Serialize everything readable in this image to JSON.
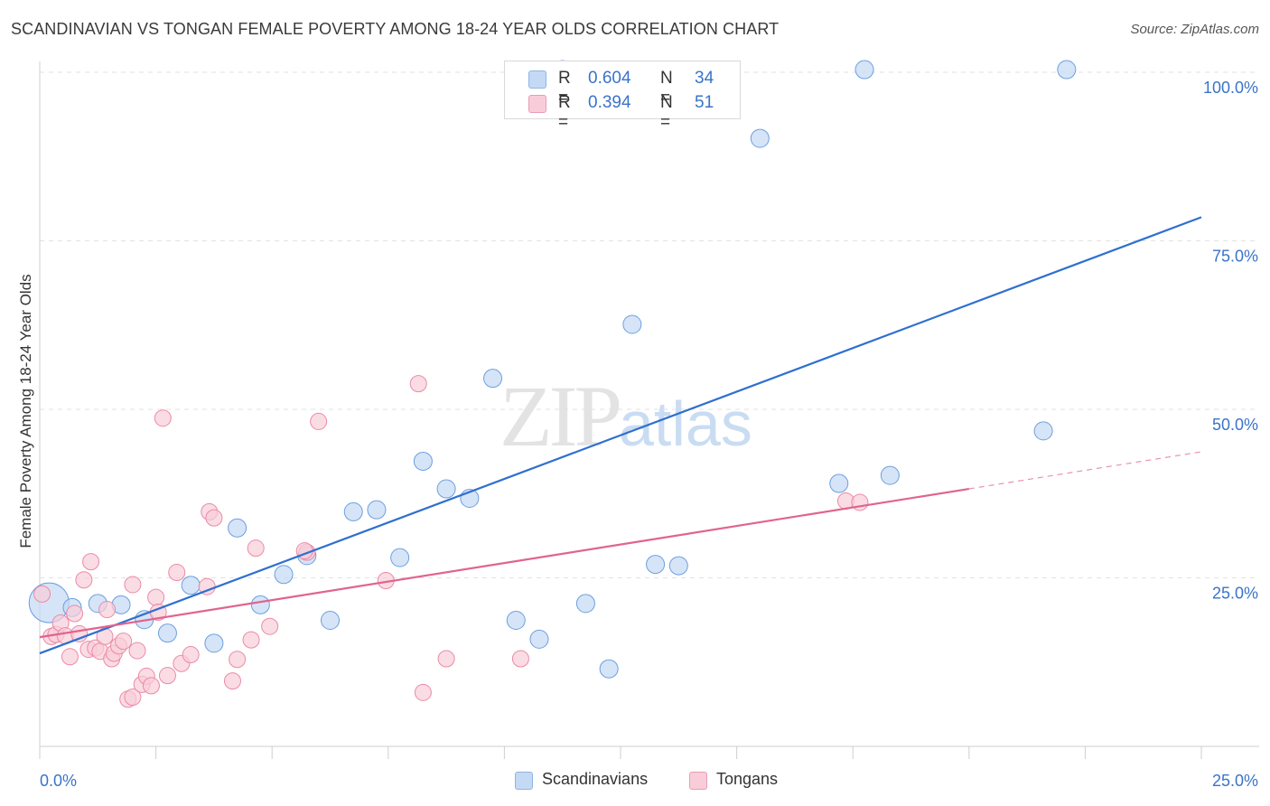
{
  "header": {
    "title": "SCANDINAVIAN VS TONGAN FEMALE POVERTY AMONG 18-24 YEAR OLDS CORRELATION CHART",
    "source": "Source: ZipAtlas.com"
  },
  "watermark": {
    "zip": "ZIP",
    "atlas": "atlas"
  },
  "legend": {
    "rows": [
      {
        "r_label": "R =",
        "r_value": "0.604",
        "n_label": "N =",
        "n_value": "34",
        "color": "#a9c8f0"
      },
      {
        "r_label": "R =",
        "r_value": "0.394",
        "n_label": "N =",
        "n_value": "51",
        "color": "#f5b6c9"
      }
    ]
  },
  "bottom_legend": {
    "items": [
      {
        "label": "Scandinavians",
        "color": "#a9c8f0"
      },
      {
        "label": "Tongans",
        "color": "#f5b6c9"
      }
    ]
  },
  "chart_data": {
    "type": "scatter",
    "title": "SCANDINAVIAN VS TONGAN FEMALE POVERTY AMONG 18-24 YEAR OLDS CORRELATION CHART",
    "xlabel": "",
    "ylabel": "Female Poverty Among 18-24 Year Olds",
    "xlim": [
      0,
      25
    ],
    "ylim": [
      0,
      100
    ],
    "x_tick_labels": [
      {
        "value": 0,
        "label": "0.0%"
      },
      {
        "value": 25,
        "label": "25.0%"
      }
    ],
    "y_tick_labels": [
      {
        "value": 25,
        "label": "25.0%"
      },
      {
        "value": 50,
        "label": "50.0%"
      },
      {
        "value": 75,
        "label": "75.0%"
      },
      {
        "value": 100,
        "label": "100.0%"
      }
    ],
    "series": [
      {
        "name": "Scandinavians",
        "color": "#6b9fe0",
        "fill": "#c4d9f4",
        "trend": {
          "x0": 0,
          "y0": 13.8,
          "x1": 25,
          "y1": 78.5,
          "color": "#2f6fcf"
        },
        "points": [
          [
            0.2,
            21.3
          ],
          [
            0.7,
            20.6
          ],
          [
            1.25,
            21.2
          ],
          [
            1.75,
            21.0
          ],
          [
            2.25,
            18.8
          ],
          [
            2.75,
            16.8
          ],
          [
            3.25,
            23.9
          ],
          [
            3.75,
            15.3
          ],
          [
            4.25,
            32.4
          ],
          [
            4.75,
            21.0
          ],
          [
            5.25,
            25.5
          ],
          [
            5.75,
            28.3
          ],
          [
            6.25,
            18.7
          ],
          [
            6.75,
            34.8
          ],
          [
            7.25,
            35.1
          ],
          [
            7.75,
            28.0
          ],
          [
            8.25,
            42.3
          ],
          [
            8.75,
            38.2
          ],
          [
            9.25,
            36.8
          ],
          [
            9.75,
            54.6
          ],
          [
            10.25,
            18.7
          ],
          [
            10.75,
            15.9
          ],
          [
            11.25,
            100.4
          ],
          [
            11.75,
            21.2
          ],
          [
            12.25,
            11.5
          ],
          [
            12.75,
            62.6
          ],
          [
            13.25,
            27.0
          ],
          [
            13.75,
            26.8
          ],
          [
            15.5,
            90.2
          ],
          [
            17.2,
            39.0
          ],
          [
            17.75,
            100.4
          ],
          [
            18.3,
            40.2
          ],
          [
            21.6,
            46.8
          ],
          [
            22.1,
            100.4
          ]
        ],
        "sizes": [
          22,
          10,
          10,
          10,
          10,
          10,
          10,
          10,
          10,
          10,
          10,
          10,
          10,
          10,
          10,
          10,
          10,
          10,
          10,
          10,
          10,
          10,
          10,
          10,
          10,
          10,
          10,
          10,
          10,
          10,
          10,
          10,
          10,
          10
        ]
      },
      {
        "name": "Tongans",
        "color": "#eb8aa6",
        "fill": "#f8cdd9",
        "trend": {
          "x0": 0,
          "y0": 16.2,
          "x1": 20,
          "y1": 38.2,
          "color": "#e0648f"
        },
        "trend_dashed": {
          "x0": 20,
          "y0": 38.2,
          "x1": 25,
          "y1": 43.7
        },
        "points": [
          [
            0.05,
            22.6
          ],
          [
            0.25,
            16.3
          ],
          [
            0.35,
            16.6
          ],
          [
            0.45,
            18.3
          ],
          [
            0.55,
            16.4
          ],
          [
            0.65,
            13.3
          ],
          [
            0.75,
            19.7
          ],
          [
            0.85,
            16.7
          ],
          [
            0.95,
            24.7
          ],
          [
            1.05,
            14.4
          ],
          [
            1.1,
            27.4
          ],
          [
            1.2,
            14.6
          ],
          [
            1.3,
            14.1
          ],
          [
            1.4,
            16.3
          ],
          [
            1.45,
            20.3
          ],
          [
            1.55,
            13.0
          ],
          [
            1.6,
            13.8
          ],
          [
            1.7,
            14.9
          ],
          [
            1.8,
            15.6
          ],
          [
            1.9,
            7.0
          ],
          [
            2.0,
            7.3
          ],
          [
            2.0,
            24.0
          ],
          [
            2.1,
            14.2
          ],
          [
            2.2,
            9.2
          ],
          [
            2.3,
            10.4
          ],
          [
            2.4,
            9.0
          ],
          [
            2.5,
            22.1
          ],
          [
            2.55,
            19.9
          ],
          [
            2.65,
            48.7
          ],
          [
            2.75,
            10.5
          ],
          [
            2.95,
            25.8
          ],
          [
            3.05,
            12.3
          ],
          [
            3.25,
            13.6
          ],
          [
            3.6,
            23.7
          ],
          [
            3.65,
            34.8
          ],
          [
            3.75,
            33.9
          ],
          [
            4.15,
            9.7
          ],
          [
            4.25,
            12.9
          ],
          [
            4.55,
            15.8
          ],
          [
            4.65,
            29.4
          ],
          [
            4.95,
            17.8
          ],
          [
            5.75,
            28.8
          ],
          [
            6.0,
            48.2
          ],
          [
            7.45,
            24.6
          ],
          [
            8.15,
            53.8
          ],
          [
            8.25,
            8.0
          ],
          [
            8.75,
            13.0
          ],
          [
            10.35,
            13.0
          ],
          [
            17.35,
            36.4
          ],
          [
            17.65,
            36.2
          ],
          [
            5.7,
            29.0
          ]
        ],
        "sizes": []
      }
    ]
  }
}
